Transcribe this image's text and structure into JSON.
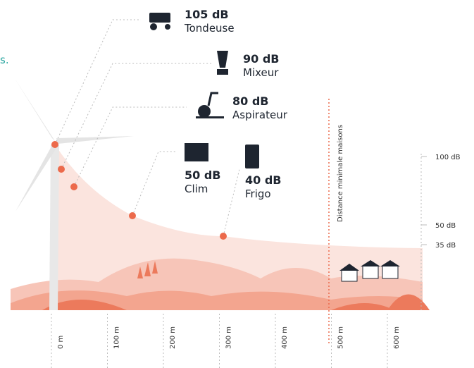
{
  "side_text": "s.",
  "sources": [
    {
      "level": "105 dB",
      "name": "Tondeuse"
    },
    {
      "level": "90 dB",
      "name": "Mixeur"
    },
    {
      "level": "80 dB",
      "name": "Aspirateur"
    },
    {
      "level": "50 dB",
      "name": "Clim"
    },
    {
      "level": "40 dB",
      "name": "Frigo"
    }
  ],
  "db_scale": [
    "100 dB",
    "50 dB",
    "35 dB"
  ],
  "distance_marker": "Distance minimale maisons",
  "distances": [
    "0 m",
    "100 m",
    "200 m",
    "300 m",
    "400 m",
    "500 m",
    "600 m"
  ]
}
